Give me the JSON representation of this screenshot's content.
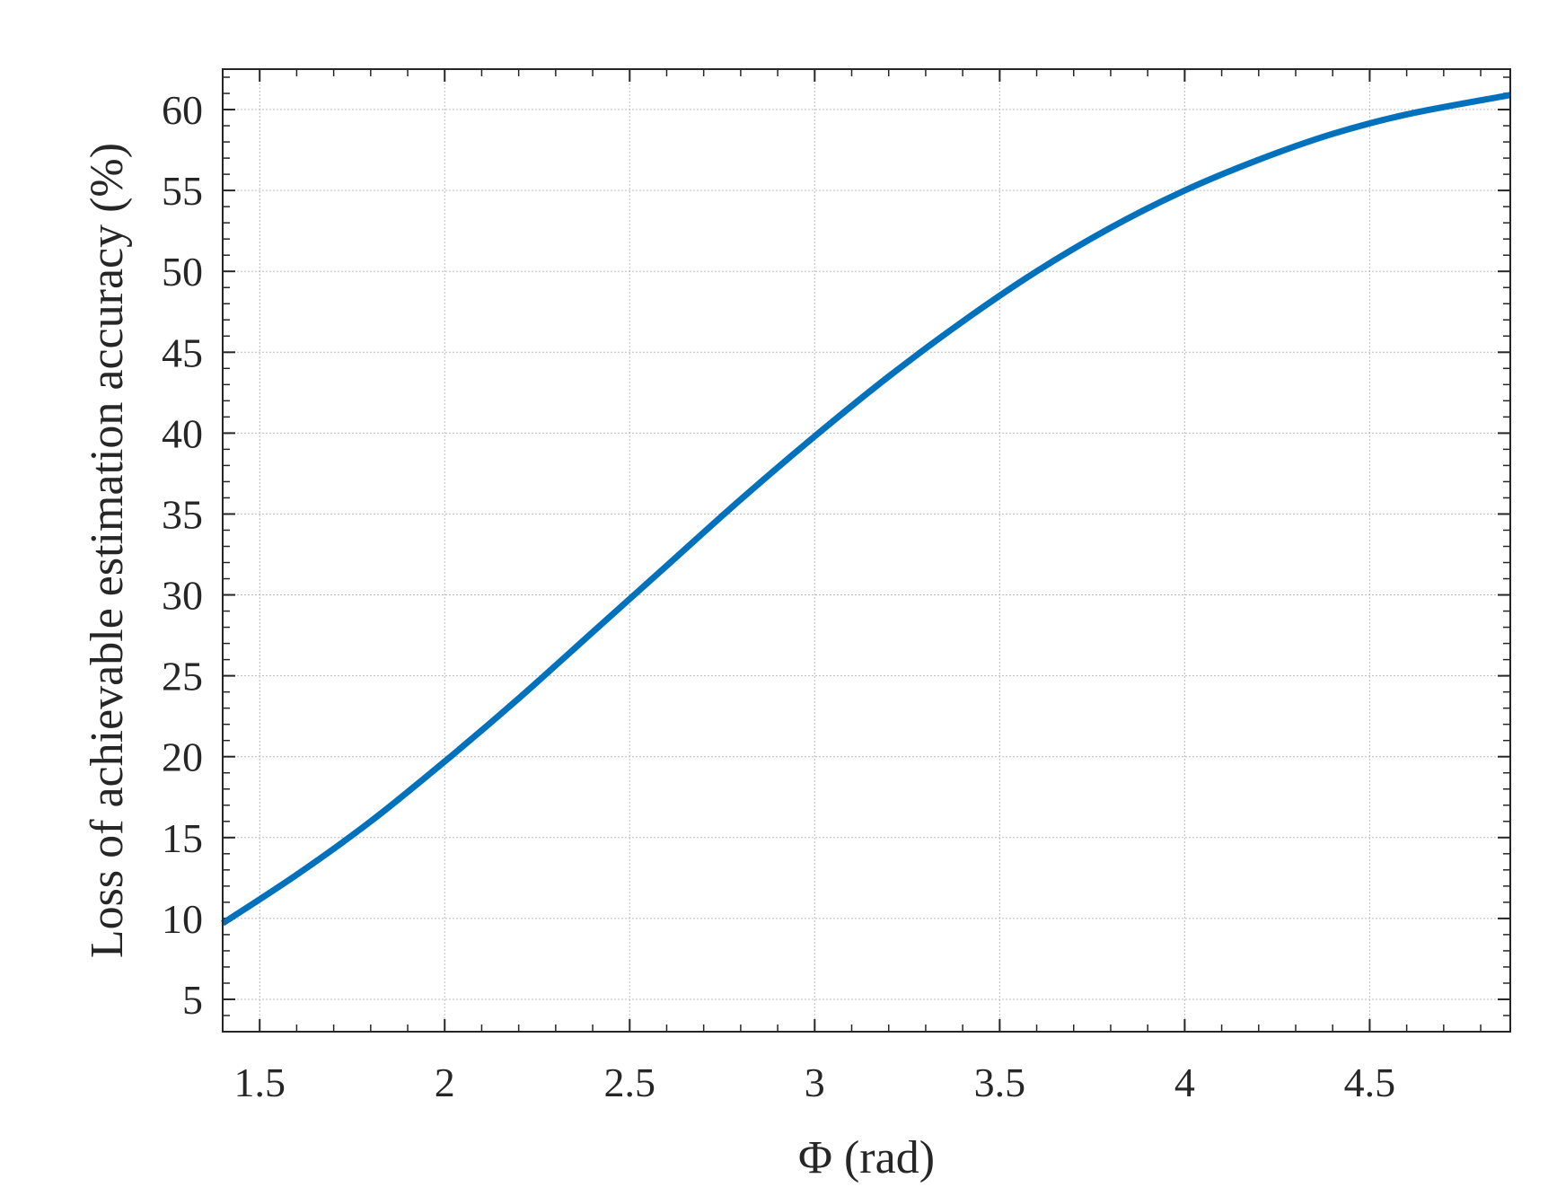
{
  "chart_data": {
    "type": "line",
    "title": "",
    "xlabel": "Φ (rad)",
    "ylabel": "Loss of achievable estimation accuracy (%)",
    "xlim": [
      1.4,
      4.88
    ],
    "ylim": [
      3,
      62.5
    ],
    "x_ticks": [
      1.5,
      2,
      2.5,
      3,
      3.5,
      4,
      4.5
    ],
    "x_tick_labels": [
      "1.5",
      "2",
      "2.5",
      "3",
      "3.5",
      "4",
      "4.5"
    ],
    "y_ticks": [
      5,
      10,
      15,
      20,
      25,
      30,
      35,
      40,
      45,
      50,
      55,
      60
    ],
    "y_tick_labels": [
      "5",
      "10",
      "15",
      "20",
      "25",
      "30",
      "35",
      "40",
      "45",
      "50",
      "55",
      "60"
    ],
    "grid": true,
    "series": [
      {
        "color": "#0072BD",
        "x": [
          1.4,
          1.6,
          1.8,
          2.0,
          2.2,
          2.4,
          2.6,
          2.8,
          3.0,
          3.2,
          3.4,
          3.6,
          3.8,
          4.0,
          4.2,
          4.4,
          4.6,
          4.88
        ],
        "values": [
          9.7,
          12.7,
          16.0,
          19.7,
          23.6,
          27.7,
          31.8,
          35.9,
          39.8,
          43.5,
          46.9,
          50.0,
          52.7,
          55.0,
          56.9,
          58.5,
          59.7,
          60.9
        ]
      }
    ]
  }
}
